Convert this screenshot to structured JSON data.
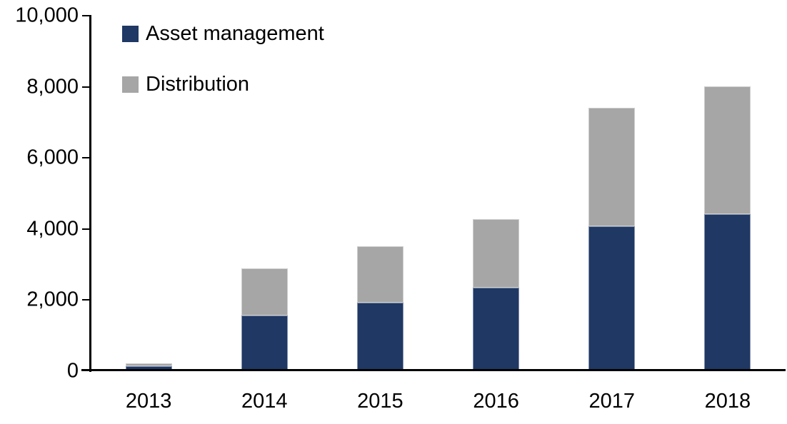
{
  "chart_data": {
    "type": "bar",
    "stacked": true,
    "title": "",
    "xlabel": "",
    "ylabel": "",
    "categories": [
      "2013",
      "2014",
      "2015",
      "2016",
      "2017",
      "2018"
    ],
    "series": [
      {
        "name": "Asset management",
        "color": "#1F3864",
        "values": [
          120,
          1550,
          1900,
          2320,
          4050,
          4400
        ]
      },
      {
        "name": "Distribution",
        "color": "#A6A6A6",
        "values": [
          80,
          1320,
          1600,
          1930,
          3330,
          3600
        ]
      }
    ],
    "totals": [
      200,
      2870,
      3500,
      4250,
      7380,
      8000
    ],
    "ylim": [
      0,
      10000
    ],
    "y_ticks": [
      {
        "value": 0,
        "label": "0"
      },
      {
        "value": 2000,
        "label": "2,000"
      },
      {
        "value": 4000,
        "label": "4,000"
      },
      {
        "value": 6000,
        "label": "6,000"
      },
      {
        "value": 8000,
        "label": "8,000"
      },
      {
        "value": 10000,
        "label": "10,000"
      }
    ],
    "grid": false,
    "legend_position": "top-left-inside",
    "axis_color": "#000000",
    "text_color": "#000000",
    "background_color": "#FFFFFF"
  }
}
